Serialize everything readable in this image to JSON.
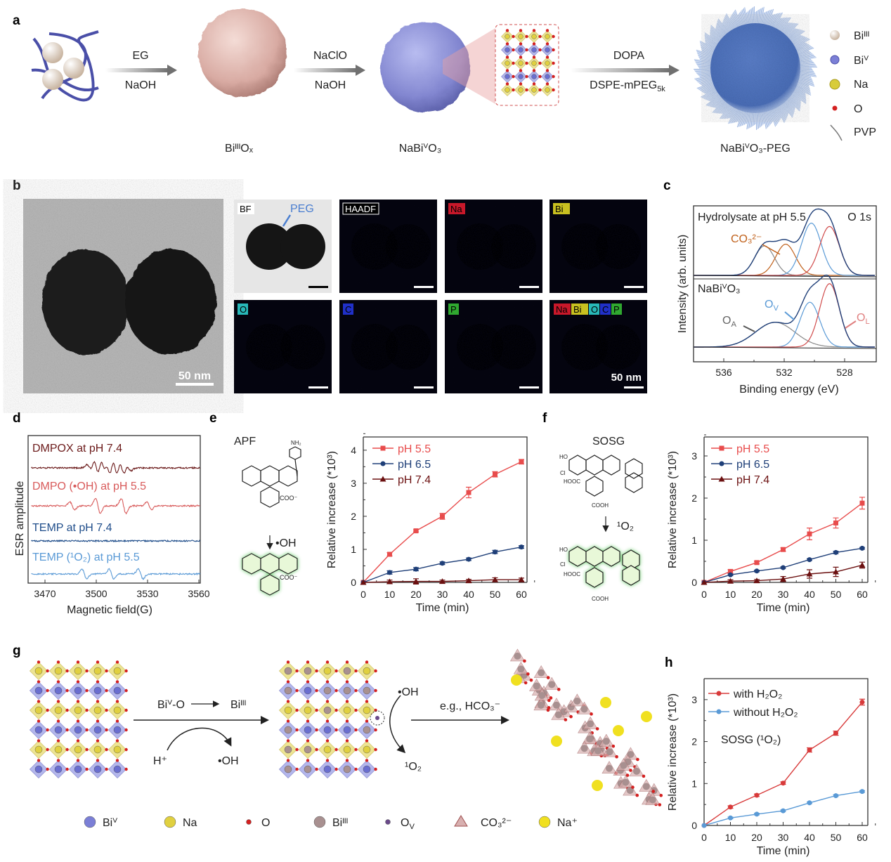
{
  "panels": {
    "a": "a",
    "b": "b",
    "c": "c",
    "d": "d",
    "e": "e",
    "f": "f",
    "g": "g",
    "h": "h"
  },
  "panel_a": {
    "step1": {
      "top": "EG",
      "bottom": "NaOH"
    },
    "step2": {
      "top": "NaClO",
      "bottom": "NaOH"
    },
    "step3": {
      "top": "DOPA",
      "bottom_main": "DSPE-mPEG",
      "bottom_sub": "5k"
    },
    "captions": [
      "BiᴵᴵᴵOₓ",
      "NaBiⱽO₃",
      "NaBiⱽO₃-PEG"
    ],
    "legend": [
      {
        "label": "Biᴵᴵᴵ",
        "color": "#d9c9b8"
      },
      {
        "label": "Biⱽ",
        "color": "#7b7fd6"
      },
      {
        "label": "Na",
        "color": "#d8cc3a"
      },
      {
        "label": "O",
        "color": "#d42020"
      },
      {
        "label": "PVP",
        "color": "#777777"
      }
    ]
  },
  "panel_b": {
    "tem_scale": "50 nm",
    "maps": [
      {
        "label": "BF",
        "extra": "PEG",
        "color": "#bbbbbb"
      },
      {
        "label": "HAADF",
        "color": "#dddddd"
      },
      {
        "label": "Na",
        "color": "#c8182a"
      },
      {
        "label": "Bi",
        "color": "#c8c020"
      },
      {
        "label": "O",
        "color": "#28b8b8"
      },
      {
        "label": "C",
        "color": "#2030c8"
      },
      {
        "label": "P",
        "color": "#30a830"
      },
      {
        "label": "merge",
        "tags": [
          "Na",
          "Bi",
          "O",
          "C",
          "P"
        ],
        "scale": "50 nm",
        "color": "#a8c860"
      }
    ]
  },
  "chart_data": [
    {
      "id": "c",
      "type": "line",
      "title": "O 1s",
      "xlabel": "Binding energy (eV)",
      "ylabel": "Intensity (arb. units)",
      "xticks": [
        536,
        532,
        528
      ],
      "xlim": [
        538,
        526
      ],
      "spectra": [
        {
          "name": "Hydrolysate at pH 5.5",
          "peaks": [
            {
              "center": 533.3,
              "height": 0.35,
              "color": "#888888"
            },
            {
              "center": 531.9,
              "height": 0.37,
              "color": "#c0601a"
            },
            {
              "center": 530.2,
              "height": 0.62,
              "color": "#5a9ad6"
            },
            {
              "center": 529.0,
              "height": 0.58,
              "color": "#d04a4a"
            }
          ],
          "annotations": [
            {
              "text": "CO₃²⁻",
              "target": 532.4
            }
          ]
        },
        {
          "name": "NaBiⱽO₃",
          "peaks": [
            {
              "center": 532.6,
              "height": 0.32,
              "color": "#888888"
            },
            {
              "center": 530.3,
              "height": 0.58,
              "color": "#5a9ad6"
            },
            {
              "center": 529.0,
              "height": 0.82,
              "color": "#d04a4a"
            }
          ],
          "annotations": [
            {
              "main": "O",
              "sub": "A",
              "color": "#666666"
            },
            {
              "main": "O",
              "sub": "V",
              "color": "#5a9ad6"
            },
            {
              "main": "O",
              "sub": "L",
              "color": "#e08080"
            }
          ]
        }
      ]
    },
    {
      "id": "d",
      "type": "line",
      "xlabel": "Magnetic field(G)",
      "ylabel": "ESR amplitude",
      "xticks": [
        3470,
        3500,
        3530,
        3560
      ],
      "xlim": [
        3462,
        3561
      ],
      "series": [
        {
          "name": "DMPOX at pH 7.4",
          "color": "#6b1a1a",
          "lines": [
            3496,
            3500,
            3504,
            3507,
            3511,
            3515,
            3519
          ],
          "amp": [
            0.4,
            0.9,
            1,
            1,
            1,
            0.8,
            0.35
          ]
        },
        {
          "name": "DMPO (•OH) at pH 5.5",
          "color": "#d85a5a",
          "lines": [
            3486,
            3501,
            3516,
            3531
          ],
          "amp": [
            0.5,
            1,
            1,
            0.5
          ]
        },
        {
          "name": "TEMP at pH 7.4",
          "color": "#1f4d8a",
          "lines": [],
          "amp": []
        },
        {
          "name": "TEMP (¹O₂) at pH 5.5",
          "color": "#5a9ad6",
          "lines": [
            3493,
            3509,
            3526
          ],
          "amp": [
            0.8,
            0.8,
            0.8
          ]
        }
      ]
    },
    {
      "id": "e",
      "type": "line",
      "probe": "APF",
      "xlabel": "Time (min)",
      "ylabel": "Relative increase (*10³)",
      "x": [
        0,
        10,
        20,
        30,
        40,
        50,
        60
      ],
      "ylim": [
        0,
        4.4
      ],
      "yticks": [
        0,
        1,
        2,
        3,
        4
      ],
      "series": [
        {
          "name": "pH 5.5",
          "color": "#e84c4c",
          "marker": "square",
          "values": [
            0,
            0.85,
            1.56,
            2.0,
            2.72,
            3.27,
            3.65
          ],
          "err": [
            0,
            0.05,
            0.03,
            0.09,
            0.16,
            0.08,
            0.07
          ]
        },
        {
          "name": "pH 6.5",
          "color": "#1f3f78",
          "marker": "circle",
          "values": [
            0,
            0.3,
            0.4,
            0.58,
            0.7,
            0.92,
            1.07
          ],
          "err": [
            0,
            0.05,
            0.05,
            0.04,
            0.04,
            0.05,
            0.04
          ]
        },
        {
          "name": "pH 7.4",
          "color": "#6b1010",
          "marker": "triangle",
          "values": [
            0,
            0.02,
            0.03,
            0.03,
            0.05,
            0.08,
            0.08
          ],
          "err": [
            0,
            0.05,
            0.08,
            0.04,
            0.04,
            0.06,
            0.05
          ]
        }
      ]
    },
    {
      "id": "f",
      "type": "line",
      "probe": "SOSG",
      "xlabel": "Time (min)",
      "ylabel": "Relative increase (*10³)",
      "x": [
        0,
        10,
        20,
        30,
        40,
        50,
        60
      ],
      "ylim": [
        0,
        3.45
      ],
      "yticks": [
        0,
        1,
        2,
        3
      ],
      "series": [
        {
          "name": "pH 5.5",
          "color": "#e84c4c",
          "marker": "square",
          "values": [
            0,
            0.26,
            0.47,
            0.78,
            1.15,
            1.41,
            1.88
          ],
          "err": [
            0,
            0.04,
            0.03,
            0.04,
            0.14,
            0.12,
            0.14
          ]
        },
        {
          "name": "pH 6.5",
          "color": "#1f3f78",
          "marker": "circle",
          "values": [
            0,
            0.18,
            0.27,
            0.35,
            0.54,
            0.71,
            0.81
          ],
          "err": [
            0,
            0.02,
            0.02,
            0.02,
            0.02,
            0.03,
            0.02
          ]
        },
        {
          "name": "pH 7.4",
          "color": "#6b1010",
          "marker": "triangle",
          "values": [
            0,
            0.03,
            0.04,
            0.08,
            0.2,
            0.25,
            0.41
          ],
          "err": [
            0,
            0.03,
            0.03,
            0.06,
            0.1,
            0.11,
            0.07
          ]
        }
      ]
    },
    {
      "id": "h",
      "type": "line",
      "annotation": "SOSG (¹O₂)",
      "xlabel": "Time (min)",
      "ylabel": "Relative increase (*10³)",
      "x": [
        0,
        10,
        20,
        30,
        40,
        50,
        60
      ],
      "ylim": [
        0,
        3.5
      ],
      "yticks": [
        0,
        1,
        2,
        3
      ],
      "series": [
        {
          "name": "with H₂O₂",
          "color": "#d83a3a",
          "marker": "circle",
          "values": [
            0,
            0.44,
            0.72,
            1.01,
            1.8,
            2.2,
            2.94
          ],
          "err": [
            0,
            0.03,
            0.03,
            0.03,
            0.05,
            0.05,
            0.07
          ]
        },
        {
          "name": "without H₂O₂",
          "color": "#5a9ad6",
          "marker": "circle",
          "values": [
            0,
            0.18,
            0.27,
            0.35,
            0.54,
            0.71,
            0.81
          ],
          "err": [
            0,
            0.02,
            0.02,
            0.02,
            0.02,
            0.02,
            0.02
          ]
        }
      ]
    }
  ],
  "panel_e": {
    "probe": "APF",
    "reagent": "•OH",
    "nh2": "NH₂",
    "coo": "COO⁻"
  },
  "panel_f": {
    "probe": "SOSG",
    "reagent": "¹O₂",
    "ho": "HO",
    "cl": "Cl",
    "hooc": "HOOC",
    "cooh": "COOH"
  },
  "panel_g": {
    "reaction1_from": "Biⱽ-O",
    "reaction1_to": "Biᴵᴵᴵ",
    "h_plus": "H⁺",
    "oh_out": "•OH",
    "oh_in": "•OH",
    "singlet": "¹O₂",
    "reaction2": "e.g., HCO₃⁻",
    "legend": [
      {
        "label": "Biⱽ",
        "color": "#7b7fd6"
      },
      {
        "label": "Na",
        "color": "#e0d040"
      },
      {
        "label": "O",
        "color": "#d42020"
      },
      {
        "label": "Biᴵᴵᴵ",
        "color": "#a89090"
      },
      {
        "main": "O",
        "sub": "V",
        "color": "#6a4a8a"
      },
      {
        "label": "CO₃²⁻",
        "color": "#b05040"
      },
      {
        "label": "Na⁺",
        "color": "#f0e020"
      }
    ]
  }
}
